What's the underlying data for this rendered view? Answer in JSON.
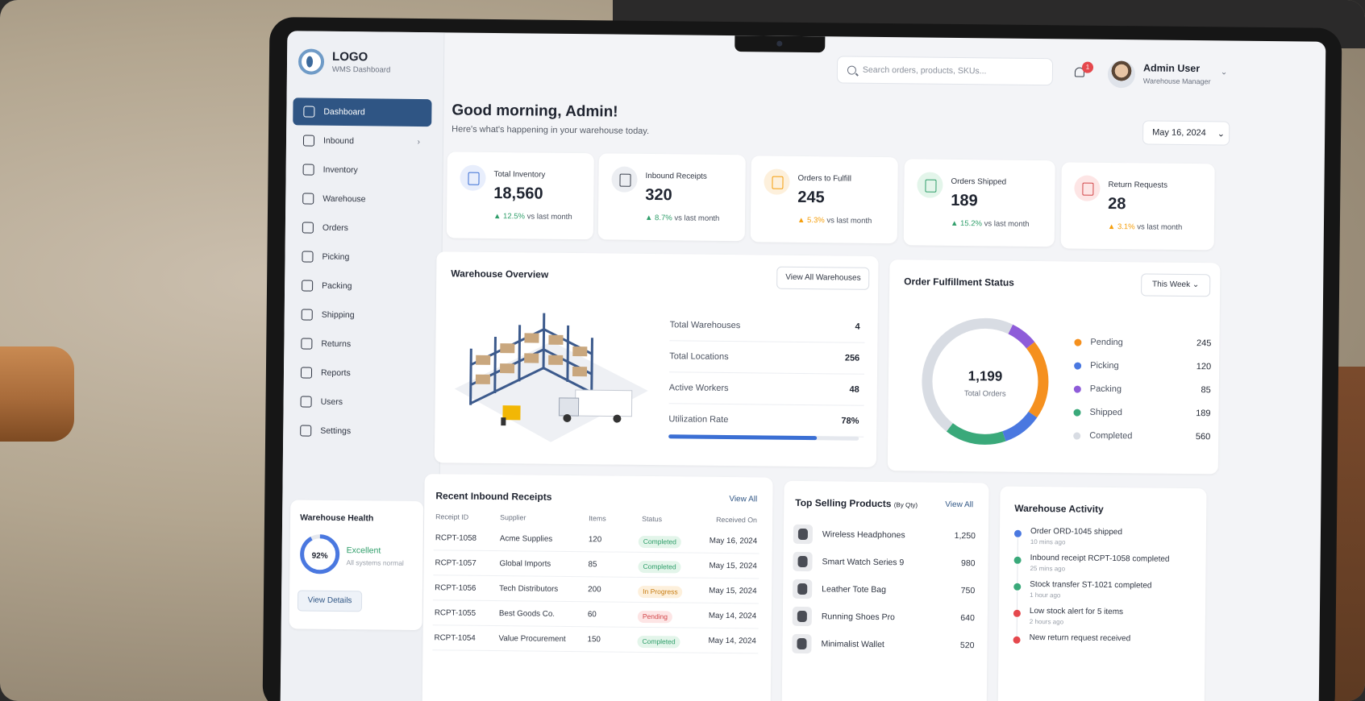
{
  "colors": {
    "primary": "#2f5584",
    "pending": "#f5901e",
    "picking": "#4a78e0",
    "packing": "#8e5cd9",
    "shipped": "#3aa97a",
    "completed": "#d8dce3",
    "success": "#2f9e6a",
    "warning": "#f59e0b",
    "danger": "#e5484d"
  },
  "brand": {
    "title": "LOGO",
    "subtitle": "WMS Dashboard"
  },
  "nav": [
    {
      "label": "Dashboard",
      "icon": "dashboard-icon",
      "active": true
    },
    {
      "label": "Inbound",
      "icon": "inbound-icon",
      "chevron": "›"
    },
    {
      "label": "Inventory",
      "icon": "inventory-icon"
    },
    {
      "label": "Warehouse",
      "icon": "warehouse-icon"
    },
    {
      "label": "Orders",
      "icon": "orders-icon"
    },
    {
      "label": "Picking",
      "icon": "picking-icon"
    },
    {
      "label": "Packing",
      "icon": "packing-icon"
    },
    {
      "label": "Shipping",
      "icon": "shipping-icon"
    },
    {
      "label": "Returns",
      "icon": "returns-icon"
    },
    {
      "label": "Reports",
      "icon": "reports-icon"
    },
    {
      "label": "Users",
      "icon": "users-icon"
    },
    {
      "label": "Settings",
      "icon": "settings-icon"
    }
  ],
  "health": {
    "title": "Warehouse Health",
    "percent_label": "92%",
    "percent": 92,
    "status": "Excellent",
    "note": "All systems normal",
    "button": "View Details"
  },
  "topbar": {
    "search_placeholder": "Search orders, products, SKUs...",
    "notification_count": "1",
    "user_name": "Admin User",
    "user_role": "Warehouse Manager",
    "chevron": "⌄"
  },
  "greeting": {
    "title": "Good morning, Admin!",
    "subtitle": "Here's what's happening in your warehouse today.",
    "date": "May 16, 2024",
    "chevron": "⌄"
  },
  "stats": [
    {
      "label": "Total Inventory",
      "value": "18,560",
      "change": "12.5%",
      "suffix": "vs last month",
      "arrow": "▲",
      "tone": "up",
      "icon": "inventory-box-icon",
      "icon_bg": "#e8eefc",
      "icon_color": "#3b6fd4"
    },
    {
      "label": "Inbound Receipts",
      "value": "320",
      "change": "8.7%",
      "suffix": "vs last month",
      "arrow": "▲",
      "tone": "up",
      "icon": "inbound-receipt-icon",
      "icon_bg": "#eceef2",
      "icon_color": "#3a404c"
    },
    {
      "label": "Orders to Fulfill",
      "value": "245",
      "change": "5.3%",
      "suffix": "vs last month",
      "arrow": "▲",
      "tone": "warn",
      "icon": "clipboard-icon",
      "icon_bg": "#fdf0dc",
      "icon_color": "#f59e0b"
    },
    {
      "label": "Orders Shipped",
      "value": "189",
      "change": "15.2%",
      "suffix": "vs last month",
      "arrow": "▲",
      "tone": "up",
      "icon": "truck-icon",
      "icon_bg": "#e3f5ea",
      "icon_color": "#2f9e6a"
    },
    {
      "label": "Return Requests",
      "value": "28",
      "change": "3.1%",
      "suffix": "vs last month",
      "arrow": "▲",
      "tone": "warn",
      "icon": "return-icon",
      "icon_bg": "#fde5e5",
      "icon_color": "#d2474a"
    }
  ],
  "warehouse_overview": {
    "title": "Warehouse Overview",
    "button": "View All Warehouses",
    "rows": [
      {
        "label": "Total Warehouses",
        "value": "4"
      },
      {
        "label": "Total Locations",
        "value": "256"
      },
      {
        "label": "Active Workers",
        "value": "48"
      },
      {
        "label": "Utilization Rate",
        "value": "78%"
      }
    ],
    "utilization": 78
  },
  "fulfillment": {
    "title": "Order Fulfillment Status",
    "filter": "This Week",
    "chevron": "⌄",
    "total": "1,199",
    "total_label": "Total Orders"
  },
  "chart_data": {
    "type": "pie",
    "categories": [
      "Pending",
      "Picking",
      "Packing",
      "Shipped",
      "Completed"
    ],
    "values": [
      245,
      120,
      85,
      189,
      560
    ],
    "title": ""
  },
  "inbound_receipts": {
    "title": "Recent Inbound Receipts",
    "link": "View All",
    "columns": [
      "Receipt ID",
      "Supplier",
      "Items",
      "Status",
      "Received On"
    ],
    "rows": [
      {
        "id": "RCPT-1058",
        "supplier": "Acme Supplies",
        "items": "120",
        "status": "Completed",
        "state": "completed",
        "date": "May 16, 2024"
      },
      {
        "id": "RCPT-1057",
        "supplier": "Global Imports",
        "items": "85",
        "status": "Completed",
        "state": "completed",
        "date": "May 15, 2024"
      },
      {
        "id": "RCPT-1056",
        "supplier": "Tech Distributors",
        "items": "200",
        "status": "In Progress",
        "state": "progress",
        "date": "May 15, 2024"
      },
      {
        "id": "RCPT-1055",
        "supplier": "Best Goods Co.",
        "items": "60",
        "status": "Pending",
        "state": "pending",
        "date": "May 14, 2024"
      },
      {
        "id": "RCPT-1054",
        "supplier": "Value Procurement",
        "items": "150",
        "status": "Completed",
        "state": "completed",
        "date": "May 14, 2024"
      }
    ]
  },
  "top_products": {
    "title": "Top Selling Products",
    "qualifier": "(By Qty)",
    "link": "View All",
    "items": [
      {
        "name": "Wireless Headphones",
        "qty": "1,250"
      },
      {
        "name": "Smart Watch Series 9",
        "qty": "980"
      },
      {
        "name": "Leather Tote Bag",
        "qty": "750"
      },
      {
        "name": "Running Shoes Pro",
        "qty": "640"
      },
      {
        "name": "Minimalist Wallet",
        "qty": "520"
      }
    ]
  },
  "activity": {
    "title": "Warehouse Activity",
    "items": [
      {
        "text": "Order ORD-1045 shipped",
        "time": "10 mins ago",
        "color": "#4a78e0"
      },
      {
        "text": "Inbound receipt RCPT-1058 completed",
        "time": "25 mins ago",
        "color": "#3aa97a"
      },
      {
        "text": "Stock transfer ST-1021 completed",
        "time": "1 hour ago",
        "color": "#3aa97a"
      },
      {
        "text": "Low stock alert for 5 items",
        "time": "2 hours ago",
        "color": "#e5484d"
      },
      {
        "text": "New return request received",
        "time": "",
        "color": "#e5484d"
      }
    ]
  }
}
